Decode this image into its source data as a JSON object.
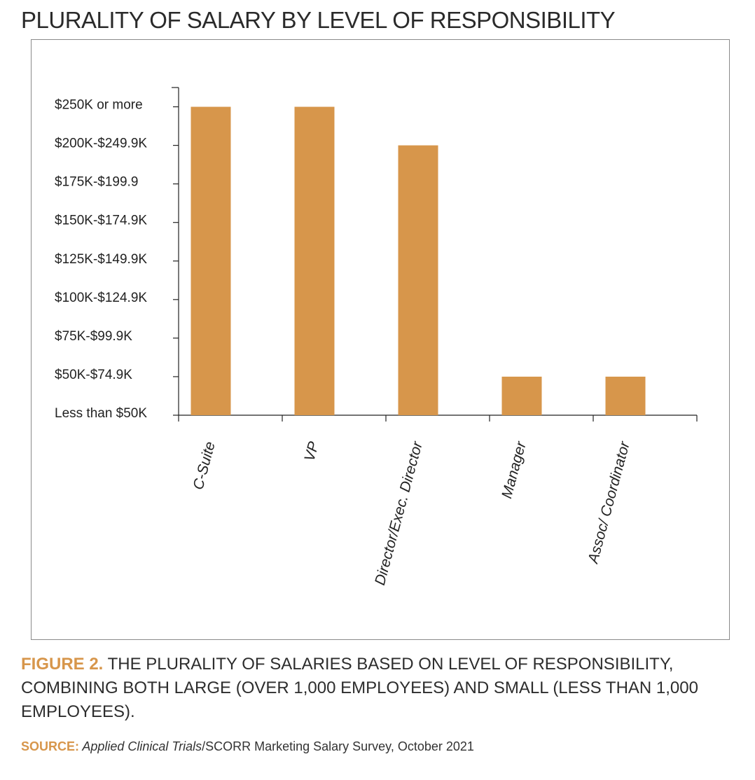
{
  "header": {
    "title": "PLURALITY OF SALARY BY LEVEL OF RESPONSIBILITY"
  },
  "caption": {
    "figure_label": "FIGURE 2.",
    "text": " THE PLURALITY OF SALARIES BASED ON LEVEL OF RESPONSIBILITY, COMBINING BOTH LARGE (OVER 1,000 EMPLOYEES) AND SMALL (LESS THAN 1,000 EMPLOYEES)."
  },
  "source": {
    "label": "SOURCE:",
    "italic": " Applied Clinical Trials",
    "rest": "/SCORR Marketing Salary Survey, October 2021"
  },
  "colors": {
    "bar": "#d7964b",
    "accent": "#d7964b",
    "axis": "#222222"
  },
  "chart_data": {
    "type": "bar",
    "title": "PLURALITY OF SALARY BY LEVEL OF RESPONSIBILITY",
    "xlabel": "",
    "ylabel": "",
    "categories": [
      "C-Suite",
      "VP",
      "Director/Exec. Director",
      "Manager",
      "Assoc/ Coordinator"
    ],
    "y_tick_labels": [
      "Less than $50K",
      "$50K-$74.9K",
      "$75K-$99.9K",
      "$100K-$124.9K",
      "$125K-$149.9K",
      "$150K-$174.9K",
      "$175K-$199.9",
      "$200K-$249.9K",
      "$250K or more"
    ],
    "values": [
      8,
      8,
      7,
      1,
      1
    ],
    "ylim": [
      0,
      8.5
    ],
    "grid": false,
    "legend": "none"
  }
}
